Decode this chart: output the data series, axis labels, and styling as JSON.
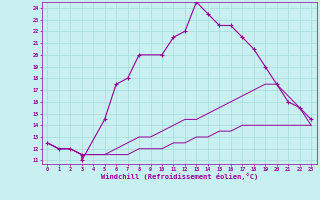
{
  "xlabel": "Windchill (Refroidissement éolien,°C)",
  "bg_color": "#c8f0f0",
  "grid_color": "#a8dada",
  "line_color": "#990099",
  "xlim": [
    -0.5,
    23.5
  ],
  "ylim": [
    10.7,
    24.5
  ],
  "yticks": [
    11,
    12,
    13,
    14,
    15,
    16,
    17,
    18,
    19,
    20,
    21,
    22,
    23,
    24
  ],
  "xticks": [
    0,
    1,
    2,
    3,
    4,
    5,
    6,
    7,
    8,
    9,
    10,
    11,
    12,
    13,
    14,
    15,
    16,
    17,
    18,
    19,
    20,
    21,
    22,
    23
  ],
  "main_x": [
    0,
    1,
    2,
    3,
    3,
    5,
    6,
    7,
    8,
    10,
    11,
    12,
    13,
    14,
    15,
    16,
    17,
    18,
    19,
    20,
    21,
    22,
    23
  ],
  "main_y": [
    12.5,
    12.0,
    12.0,
    11.5,
    11.0,
    14.5,
    17.5,
    18.0,
    20.0,
    20.0,
    21.5,
    22.0,
    24.5,
    23.5,
    22.5,
    22.5,
    21.5,
    20.5,
    19.0,
    17.5,
    16.0,
    15.5,
    14.5
  ],
  "lower1_x": [
    0,
    1,
    2,
    3,
    4,
    5,
    6,
    7,
    8,
    9,
    10,
    11,
    12,
    13,
    14,
    15,
    16,
    17,
    18,
    19,
    20,
    21,
    22,
    23
  ],
  "lower1_y": [
    12.5,
    12.0,
    12.0,
    11.5,
    11.5,
    11.5,
    12.0,
    12.5,
    13.0,
    13.0,
    13.5,
    14.0,
    14.5,
    14.5,
    15.0,
    15.5,
    16.0,
    16.5,
    17.0,
    17.5,
    17.5,
    16.5,
    15.5,
    14.0
  ],
  "lower2_x": [
    0,
    1,
    2,
    3,
    4,
    5,
    6,
    7,
    8,
    9,
    10,
    11,
    12,
    13,
    14,
    15,
    16,
    17,
    18,
    19,
    20,
    21,
    22,
    23
  ],
  "lower2_y": [
    12.5,
    12.0,
    12.0,
    11.5,
    11.5,
    11.5,
    11.5,
    11.5,
    12.0,
    12.0,
    12.0,
    12.5,
    12.5,
    13.0,
    13.0,
    13.5,
    13.5,
    14.0,
    14.0,
    14.0,
    14.0,
    14.0,
    14.0,
    14.0
  ]
}
